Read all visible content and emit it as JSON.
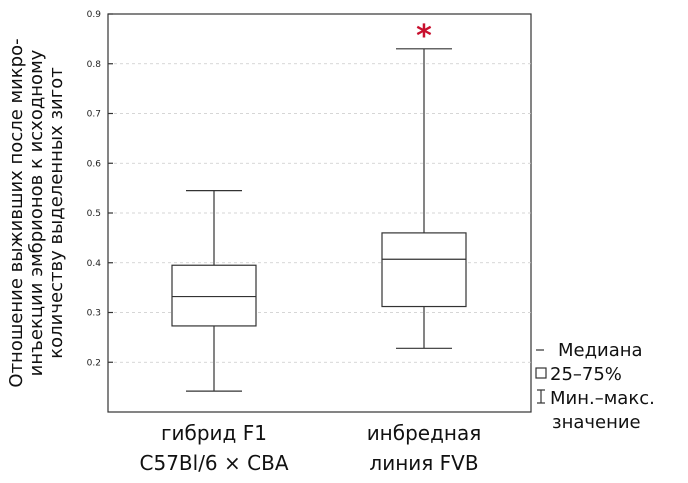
{
  "chart_data": {
    "type": "box",
    "ylabel_lines": [
      "Отношение выживших после микро-",
      "инъекции эмбрионов к исходному",
      "количеству выделенных зигот"
    ],
    "ylim": [
      0.1,
      0.9
    ],
    "yticks": [
      "0.2",
      "0.3",
      "0.4",
      "0.5",
      "0.6",
      "0.7",
      "0.8",
      "0.9"
    ],
    "ytick_values": [
      0.2,
      0.3,
      0.4,
      0.5,
      0.6,
      0.7,
      0.8,
      0.9
    ],
    "grid": true,
    "groups": [
      {
        "label_lines": [
          "гибрид F1",
          "C57Bl/6 × CBA"
        ],
        "min": 0.142,
        "q1": 0.273,
        "median": 0.332,
        "q3": 0.395,
        "max": 0.545,
        "marker": ""
      },
      {
        "label_lines": [
          "инбредная",
          "линия FVB"
        ],
        "min": 0.228,
        "q1": 0.312,
        "median": 0.407,
        "q3": 0.46,
        "max": 0.83,
        "marker": "*"
      }
    ],
    "legend": [
      {
        "symbol": "-",
        "text": "Медиана"
      },
      {
        "symbol": "□",
        "text": "25–75%"
      },
      {
        "symbol": "I",
        "text": "Мин.–макс."
      },
      {
        "symbol": "",
        "text": "значение"
      }
    ],
    "colors": {
      "marker": "#c8102e",
      "stroke": "#333333",
      "grid": "#c9c9c9"
    }
  }
}
